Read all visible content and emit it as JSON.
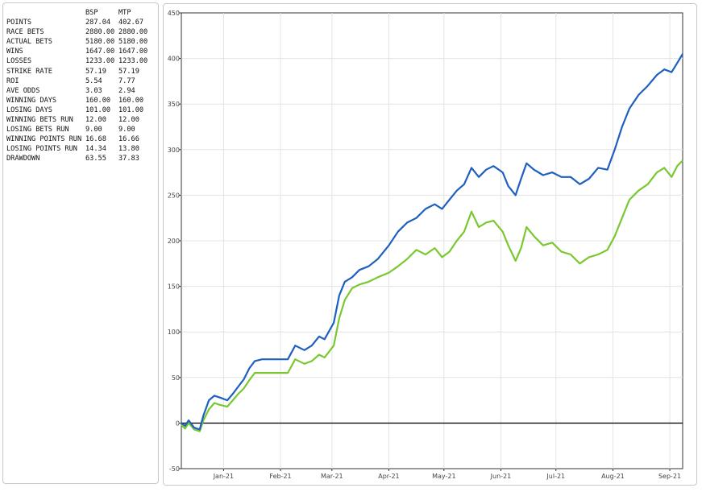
{
  "stats": {
    "columns": [
      "",
      "BSP",
      "MTP"
    ],
    "rows": [
      {
        "label": "POINTS",
        "bsp": "287.04",
        "mtp": "402.67"
      },
      {
        "label": "RACE BETS",
        "bsp": "2880.00",
        "mtp": "2880.00"
      },
      {
        "label": "ACTUAL BETS",
        "bsp": "5180.00",
        "mtp": "5180.00"
      },
      {
        "label": "WINS",
        "bsp": "1647.00",
        "mtp": "1647.00"
      },
      {
        "label": "LOSSES",
        "bsp": "1233.00",
        "mtp": "1233.00"
      },
      {
        "label": "STRIKE RATE",
        "bsp": "57.19",
        "mtp": "57.19"
      },
      {
        "label": "ROI",
        "bsp": "5.54",
        "mtp": "7.77"
      },
      {
        "label": "AVE ODDS",
        "bsp": "3.03",
        "mtp": "2.94"
      },
      {
        "label": "WINNING DAYS",
        "bsp": "160.00",
        "mtp": "160.00"
      },
      {
        "label": "LOSING DAYS",
        "bsp": "101.00",
        "mtp": "101.00"
      },
      {
        "label": "WINNING BETS RUN",
        "bsp": "12.00",
        "mtp": "12.00"
      },
      {
        "label": "LOSING BETS RUN",
        "bsp": "9.00",
        "mtp": "9.00"
      },
      {
        "label": "WINNING POINTS RUN",
        "bsp": "16.68",
        "mtp": "16.66"
      },
      {
        "label": "LOSING POINTS RUN",
        "bsp": "14.34",
        "mtp": "13.80"
      },
      {
        "label": "DRAWDOWN",
        "bsp": "63.55",
        "mtp": "37.83"
      }
    ]
  },
  "chart_data": {
    "type": "line",
    "title": "",
    "xlabel": "",
    "ylabel": "",
    "x_range": [
      "2020-12-09",
      "2021-09-08"
    ],
    "ylim": [
      -50,
      450
    ],
    "y_ticks": [
      -50,
      0,
      50,
      100,
      150,
      200,
      250,
      300,
      350,
      400,
      450
    ],
    "x_ticks": [
      {
        "label": "Jan-21",
        "date": "2021-01-01"
      },
      {
        "label": "Feb-21",
        "date": "2021-02-01"
      },
      {
        "label": "Mar-21",
        "date": "2021-03-01"
      },
      {
        "label": "Apr-21",
        "date": "2021-04-01"
      },
      {
        "label": "May-21",
        "date": "2021-05-01"
      },
      {
        "label": "Jun-21",
        "date": "2021-06-01"
      },
      {
        "label": "Jul-21",
        "date": "2021-07-01"
      },
      {
        "label": "Aug-21",
        "date": "2021-08-01"
      },
      {
        "label": "Sep-21",
        "date": "2021-09-01"
      }
    ],
    "grid": true,
    "zero_line": true,
    "series": [
      {
        "color": "#1e5fbf",
        "points": [
          [
            "2020-12-09",
            0
          ],
          [
            "2020-12-11",
            -3
          ],
          [
            "2020-12-13",
            3
          ],
          [
            "2020-12-16",
            -5
          ],
          [
            "2020-12-19",
            -7
          ],
          [
            "2020-12-21",
            8
          ],
          [
            "2020-12-24",
            25
          ],
          [
            "2020-12-27",
            30
          ],
          [
            "2020-12-30",
            28
          ],
          [
            "2021-01-03",
            25
          ],
          [
            "2021-01-06",
            32
          ],
          [
            "2021-01-09",
            40
          ],
          [
            "2021-01-12",
            48
          ],
          [
            "2021-01-15",
            60
          ],
          [
            "2021-01-18",
            68
          ],
          [
            "2021-01-22",
            70
          ],
          [
            "2021-02-01",
            70
          ],
          [
            "2021-02-05",
            70
          ],
          [
            "2021-02-09",
            85
          ],
          [
            "2021-02-14",
            80
          ],
          [
            "2021-02-18",
            85
          ],
          [
            "2021-02-22",
            95
          ],
          [
            "2021-02-25",
            92
          ],
          [
            "2021-03-02",
            110
          ],
          [
            "2021-03-05",
            140
          ],
          [
            "2021-03-08",
            155
          ],
          [
            "2021-03-12",
            160
          ],
          [
            "2021-03-16",
            168
          ],
          [
            "2021-03-21",
            172
          ],
          [
            "2021-03-26",
            180
          ],
          [
            "2021-04-01",
            195
          ],
          [
            "2021-04-06",
            210
          ],
          [
            "2021-04-11",
            220
          ],
          [
            "2021-04-16",
            225
          ],
          [
            "2021-04-21",
            235
          ],
          [
            "2021-04-26",
            240
          ],
          [
            "2021-04-30",
            235
          ],
          [
            "2021-05-04",
            245
          ],
          [
            "2021-05-08",
            255
          ],
          [
            "2021-05-12",
            262
          ],
          [
            "2021-05-16",
            280
          ],
          [
            "2021-05-20",
            270
          ],
          [
            "2021-05-24",
            278
          ],
          [
            "2021-05-28",
            282
          ],
          [
            "2021-06-02",
            275
          ],
          [
            "2021-06-05",
            260
          ],
          [
            "2021-06-09",
            250
          ],
          [
            "2021-06-12",
            268
          ],
          [
            "2021-06-15",
            285
          ],
          [
            "2021-06-19",
            278
          ],
          [
            "2021-06-24",
            272
          ],
          [
            "2021-06-29",
            275
          ],
          [
            "2021-07-04",
            270
          ],
          [
            "2021-07-09",
            270
          ],
          [
            "2021-07-14",
            262
          ],
          [
            "2021-07-19",
            268
          ],
          [
            "2021-07-24",
            280
          ],
          [
            "2021-07-29",
            278
          ],
          [
            "2021-08-02",
            300
          ],
          [
            "2021-08-06",
            325
          ],
          [
            "2021-08-10",
            345
          ],
          [
            "2021-08-15",
            360
          ],
          [
            "2021-08-20",
            370
          ],
          [
            "2021-08-25",
            382
          ],
          [
            "2021-08-29",
            388
          ],
          [
            "2021-09-02",
            385
          ],
          [
            "2021-09-05",
            395
          ],
          [
            "2021-09-08",
            405
          ]
        ]
      },
      {
        "color": "#7ac830",
        "points": [
          [
            "2020-12-09",
            -2
          ],
          [
            "2020-12-11",
            -6
          ],
          [
            "2020-12-13",
            0
          ],
          [
            "2020-12-16",
            -7
          ],
          [
            "2020-12-19",
            -9
          ],
          [
            "2020-12-21",
            3
          ],
          [
            "2020-12-24",
            15
          ],
          [
            "2020-12-27",
            22
          ],
          [
            "2020-12-30",
            20
          ],
          [
            "2021-01-03",
            18
          ],
          [
            "2021-01-06",
            25
          ],
          [
            "2021-01-09",
            32
          ],
          [
            "2021-01-12",
            38
          ],
          [
            "2021-01-15",
            47
          ],
          [
            "2021-01-18",
            55
          ],
          [
            "2021-01-22",
            55
          ],
          [
            "2021-02-01",
            55
          ],
          [
            "2021-02-05",
            55
          ],
          [
            "2021-02-09",
            70
          ],
          [
            "2021-02-14",
            65
          ],
          [
            "2021-02-18",
            68
          ],
          [
            "2021-02-22",
            75
          ],
          [
            "2021-02-25",
            72
          ],
          [
            "2021-03-02",
            85
          ],
          [
            "2021-03-05",
            115
          ],
          [
            "2021-03-08",
            135
          ],
          [
            "2021-03-12",
            148
          ],
          [
            "2021-03-16",
            152
          ],
          [
            "2021-03-21",
            155
          ],
          [
            "2021-03-26",
            160
          ],
          [
            "2021-04-01",
            165
          ],
          [
            "2021-04-06",
            172
          ],
          [
            "2021-04-11",
            180
          ],
          [
            "2021-04-16",
            190
          ],
          [
            "2021-04-21",
            185
          ],
          [
            "2021-04-26",
            192
          ],
          [
            "2021-04-30",
            182
          ],
          [
            "2021-05-04",
            188
          ],
          [
            "2021-05-08",
            200
          ],
          [
            "2021-05-12",
            210
          ],
          [
            "2021-05-16",
            232
          ],
          [
            "2021-05-20",
            215
          ],
          [
            "2021-05-24",
            220
          ],
          [
            "2021-05-28",
            222
          ],
          [
            "2021-06-02",
            210
          ],
          [
            "2021-06-05",
            195
          ],
          [
            "2021-06-09",
            178
          ],
          [
            "2021-06-12",
            192
          ],
          [
            "2021-06-15",
            215
          ],
          [
            "2021-06-19",
            205
          ],
          [
            "2021-06-24",
            195
          ],
          [
            "2021-06-29",
            198
          ],
          [
            "2021-07-04",
            188
          ],
          [
            "2021-07-09",
            185
          ],
          [
            "2021-07-14",
            175
          ],
          [
            "2021-07-19",
            182
          ],
          [
            "2021-07-24",
            185
          ],
          [
            "2021-07-29",
            190
          ],
          [
            "2021-08-02",
            205
          ],
          [
            "2021-08-06",
            225
          ],
          [
            "2021-08-10",
            245
          ],
          [
            "2021-08-15",
            255
          ],
          [
            "2021-08-20",
            262
          ],
          [
            "2021-08-25",
            275
          ],
          [
            "2021-08-29",
            280
          ],
          [
            "2021-09-02",
            270
          ],
          [
            "2021-09-05",
            282
          ],
          [
            "2021-09-08",
            288
          ]
        ]
      }
    ]
  }
}
